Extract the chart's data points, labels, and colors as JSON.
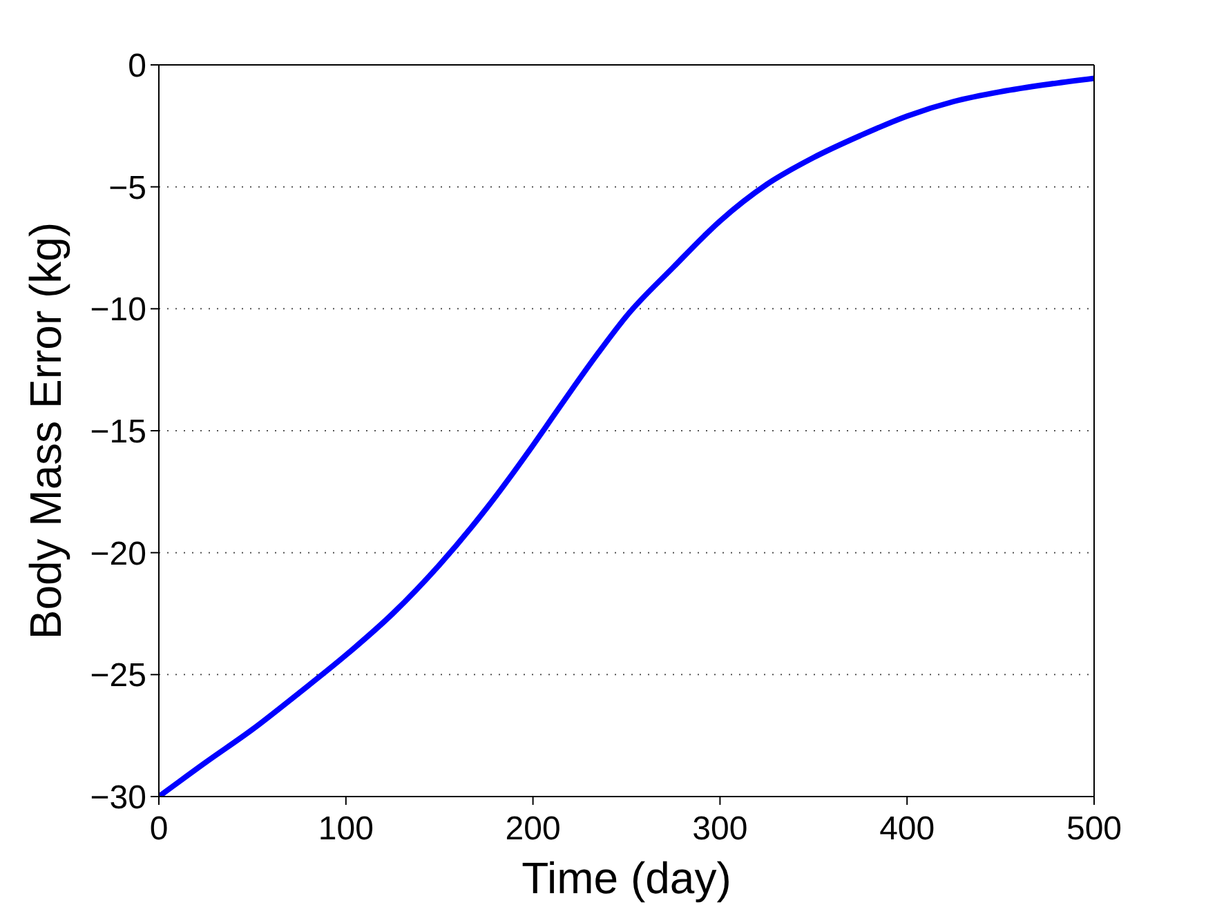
{
  "chart_data": {
    "type": "line",
    "xlabel": "Time (day)",
    "ylabel": "Body Mass Error (kg)",
    "x": [
      0,
      25,
      50,
      75,
      100,
      125,
      150,
      175,
      200,
      210,
      220,
      235,
      250,
      275,
      300,
      325,
      350,
      375,
      400,
      425,
      450,
      475,
      500
    ],
    "values": [
      -30,
      -28.6,
      -27.25,
      -25.75,
      -24.2,
      -22.5,
      -20.5,
      -18.2,
      -15.6,
      -14.5,
      -13.4,
      -11.8,
      -10.3,
      -8.3,
      -6.4,
      -4.9,
      -3.8,
      -2.9,
      -2.1,
      -1.5,
      -1.1,
      -0.8,
      -0.55
    ],
    "color": "#0000ff",
    "line_style": "solid",
    "xlim": [
      0,
      500
    ],
    "xticks": [
      0,
      100,
      200,
      300,
      400,
      500
    ],
    "ylim": [
      -30,
      0
    ],
    "yticks": [
      -30,
      -25,
      -20,
      -15,
      -10,
      -5,
      0
    ],
    "grid": "y"
  }
}
